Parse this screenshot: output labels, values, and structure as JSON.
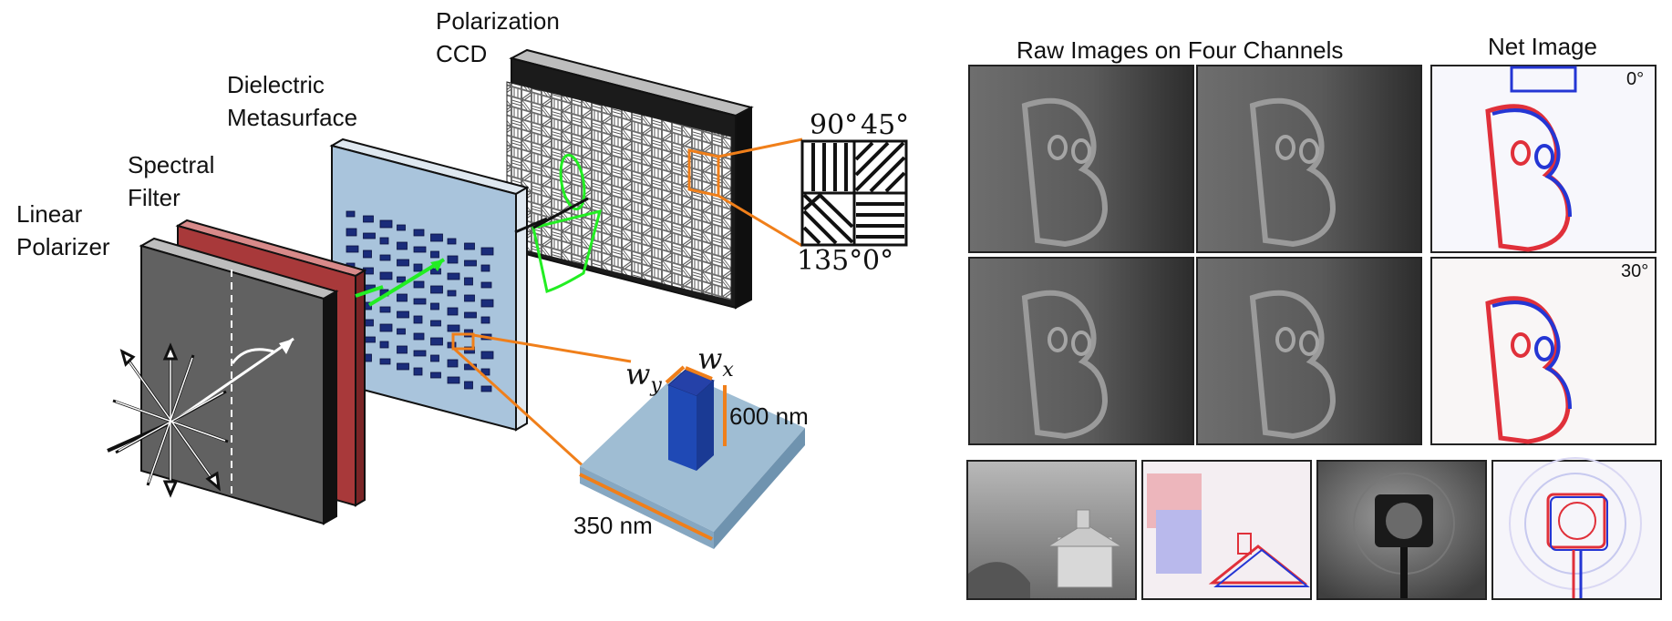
{
  "labels": {
    "polarization_ccd_line1": "Polarization",
    "polarization_ccd_line2": "CCD",
    "metasurface_line1": "Dielectric",
    "metasurface_line2": "Metasurface",
    "filter_line1": "Spectral",
    "filter_line2": "Filter",
    "polarizer_line1": "Linear",
    "polarizer_line2": "Polarizer",
    "pixel_angle_90": "90°",
    "pixel_angle_45": "45°",
    "pixel_angle_135": "135°",
    "pixel_angle_0": "0°",
    "pillar_width_x": "w",
    "pillar_width_x_sub": "x",
    "pillar_width_y": "w",
    "pillar_width_y_sub": "y",
    "pillar_height": "600 nm",
    "cell_size": "350 nm",
    "raw_images_title": "Raw Images on Four Channels",
    "net_image_title": "Net Image",
    "angle_row1": "0°",
    "angle_row2": "30°"
  },
  "colors": {
    "accent_orange": "#f07f1a",
    "filter_red": "#a8393a",
    "metasurface_blue": "#a9c4dc",
    "pillar_blue": "#1f49b5",
    "beam_green": "#22ee22",
    "net_red": "#e0303a",
    "net_blue": "#2436d4"
  },
  "icons": {
    "polarizer_arrow": "rotated-polarization-arrow",
    "unpolarized_light": "unpolarized-star-arrows"
  }
}
